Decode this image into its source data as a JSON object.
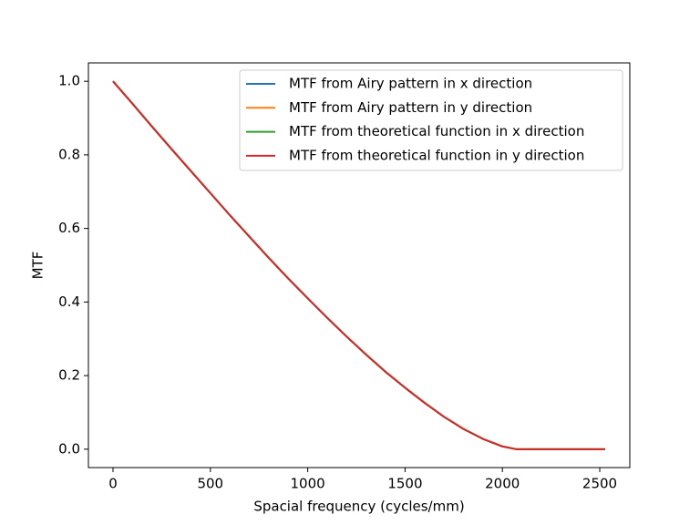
{
  "chart_data": {
    "type": "line",
    "xlabel": "Spacial frequency (cycles/mm)",
    "ylabel": "MTF",
    "x": [
      0,
      100,
      200,
      300,
      400,
      500,
      600,
      700,
      800,
      900,
      1000,
      1100,
      1200,
      1300,
      1400,
      1500,
      1600,
      1700,
      1800,
      1900,
      2000,
      2070,
      2200,
      2300,
      2400,
      2528
    ],
    "series": [
      {
        "name": "MTF from Airy pattern in x direction",
        "color": "#1f77b4",
        "values": [
          1,
          0.939,
          0.877,
          0.816,
          0.756,
          0.696,
          0.636,
          0.578,
          0.52,
          0.464,
          0.41,
          0.357,
          0.306,
          0.257,
          0.21,
          0.167,
          0.126,
          0.088,
          0.055,
          0.028,
          0.0075,
          0,
          0,
          0,
          0,
          0
        ]
      },
      {
        "name": "MTF from Airy pattern in y direction",
        "color": "#ff7f0e",
        "values": [
          1,
          0.939,
          0.877,
          0.816,
          0.756,
          0.696,
          0.636,
          0.578,
          0.52,
          0.464,
          0.41,
          0.357,
          0.306,
          0.257,
          0.21,
          0.167,
          0.126,
          0.088,
          0.055,
          0.028,
          0.0075,
          0,
          0,
          0,
          0,
          0
        ]
      },
      {
        "name": "MTF from theoretical function in x direction",
        "color": "#2ca02c",
        "values": [
          1,
          0.939,
          0.877,
          0.816,
          0.756,
          0.696,
          0.636,
          0.578,
          0.52,
          0.464,
          0.41,
          0.357,
          0.306,
          0.257,
          0.21,
          0.167,
          0.126,
          0.088,
          0.055,
          0.028,
          0.0075,
          0,
          0,
          0,
          0,
          0
        ]
      },
      {
        "name": "MTF from theoretical function in y direction",
        "color": "#d62728",
        "values": [
          1,
          0.939,
          0.877,
          0.816,
          0.756,
          0.696,
          0.636,
          0.578,
          0.52,
          0.464,
          0.41,
          0.357,
          0.306,
          0.257,
          0.21,
          0.167,
          0.126,
          0.088,
          0.055,
          0.028,
          0.0075,
          0,
          0,
          0,
          0,
          0
        ]
      }
    ],
    "xlim": [
      -126.4,
      2654.4
    ],
    "ylim": [
      -0.05,
      1.05
    ],
    "xticks": [
      0,
      500,
      1000,
      1500,
      2000,
      2500
    ],
    "yticks": [
      {
        "value": 0,
        "label": "0.0"
      },
      0.2,
      0.4,
      0.6,
      0.8,
      {
        "value": 1,
        "label": "1.0"
      }
    ],
    "grid": false,
    "legend": "upper right"
  }
}
